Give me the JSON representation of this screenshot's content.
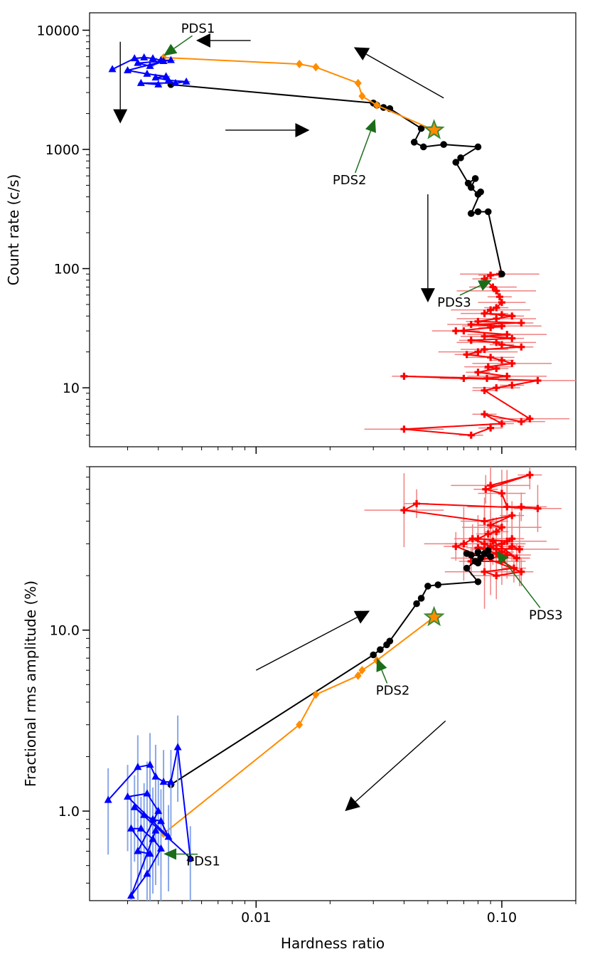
{
  "chart_data": [
    {
      "type": "scatter",
      "panel": "top",
      "title": "",
      "xlabel": "",
      "ylabel": "Count rate (c/s)",
      "xscale": "log",
      "yscale": "log",
      "xlim": [
        0.0021,
        0.2
      ],
      "ylim": [
        3.2,
        14000
      ],
      "yticks": [
        {
          "value": 10,
          "label": "10"
        },
        {
          "value": 100,
          "label": "100"
        },
        {
          "value": 1000,
          "label": "1000"
        },
        {
          "value": 10000,
          "label": "10000"
        }
      ],
      "series": [
        {
          "name": "orange",
          "color": "#ff8c00",
          "marker": "diamond",
          "points": [
            [
              0.0042,
              5900
            ],
            [
              0.015,
              5200
            ],
            [
              0.0175,
              4900
            ],
            [
              0.026,
              3600
            ],
            [
              0.027,
              2800
            ],
            [
              0.031,
              2350
            ],
            [
              0.053,
              1450
            ]
          ]
        },
        {
          "name": "black",
          "color": "#000000",
          "marker": "circle",
          "points": [
            [
              0.0045,
              3500
            ],
            [
              0.03,
              2450
            ],
            [
              0.031,
              2350
            ],
            [
              0.033,
              2250
            ],
            [
              0.035,
              2200
            ],
            [
              0.047,
              1500
            ],
            [
              0.044,
              1150
            ],
            [
              0.048,
              1050
            ],
            [
              0.058,
              1100
            ],
            [
              0.08,
              1050
            ],
            [
              0.068,
              850
            ],
            [
              0.065,
              780
            ],
            [
              0.073,
              520
            ],
            [
              0.078,
              570
            ],
            [
              0.075,
              480
            ],
            [
              0.08,
              420
            ],
            [
              0.082,
              440
            ],
            [
              0.075,
              290
            ],
            [
              0.08,
              300
            ],
            [
              0.088,
              300
            ],
            [
              0.1,
              90
            ]
          ]
        },
        {
          "name": "blue",
          "color": "#0000ff",
          "marker": "triangle",
          "errcolor": "#8aa8e8",
          "points": [
            [
              0.0026,
              4700
            ],
            [
              0.0032,
              5800
            ],
            [
              0.0035,
              5900
            ],
            [
              0.0038,
              5800
            ],
            [
              0.0041,
              5600
            ],
            [
              0.0045,
              5600
            ],
            [
              0.0033,
              5300
            ],
            [
              0.0037,
              5000
            ],
            [
              0.0042,
              5500
            ],
            [
              0.003,
              4600
            ],
            [
              0.0036,
              4300
            ],
            [
              0.0043,
              4100
            ],
            [
              0.0039,
              4000
            ],
            [
              0.0044,
              3800
            ],
            [
              0.0052,
              3700
            ],
            [
              0.0047,
              3600
            ],
            [
              0.0034,
              3600
            ],
            [
              0.004,
              3500
            ]
          ]
        },
        {
          "name": "red",
          "color": "#ff0000",
          "marker": "plus",
          "errcolor": "#f08080",
          "points": [
            [
              0.098,
              90
            ],
            [
              0.09,
              88
            ],
            [
              0.085,
              82
            ],
            [
              0.092,
              70
            ],
            [
              0.095,
              65
            ],
            [
              0.098,
              58
            ],
            [
              0.1,
              52
            ],
            [
              0.095,
              47
            ],
            [
              0.09,
              45
            ],
            [
              0.085,
              42
            ],
            [
              0.1,
              41
            ],
            [
              0.11,
              40
            ],
            [
              0.095,
              38
            ],
            [
              0.08,
              36
            ],
            [
              0.12,
              35
            ],
            [
              0.075,
              34
            ],
            [
              0.1,
              33
            ],
            [
              0.09,
              32
            ],
            [
              0.065,
              30
            ],
            [
              0.07,
              30
            ],
            [
              0.105,
              28
            ],
            [
              0.085,
              27
            ],
            [
              0.11,
              26
            ],
            [
              0.075,
              25
            ],
            [
              0.095,
              24
            ],
            [
              0.1,
              23
            ],
            [
              0.12,
              22
            ],
            [
              0.085,
              21
            ],
            [
              0.08,
              20
            ],
            [
              0.072,
              19
            ],
            [
              0.09,
              18
            ],
            [
              0.1,
              17
            ],
            [
              0.11,
              16
            ],
            [
              0.088,
              15
            ],
            [
              0.095,
              14.5
            ],
            [
              0.08,
              13.5
            ],
            [
              0.105,
              12.5
            ],
            [
              0.087,
              12
            ],
            [
              0.04,
              12.5
            ],
            [
              0.07,
              12
            ],
            [
              0.14,
              11.5
            ],
            [
              0.11,
              10.5
            ],
            [
              0.095,
              10
            ],
            [
              0.085,
              9.5
            ],
            [
              0.13,
              5.5
            ],
            [
              0.12,
              5.2
            ],
            [
              0.085,
              6
            ],
            [
              0.1,
              5
            ],
            [
              0.04,
              4.5
            ],
            [
              0.075,
              4
            ],
            [
              0.09,
              4.6
            ]
          ]
        }
      ],
      "star": {
        "x": 0.053,
        "y": 1450
      },
      "arrows": [
        {
          "from": [
            0.0095,
            8200
          ],
          "to": [
            0.0057,
            8200
          ]
        },
        {
          "from": [
            0.058,
            2700
          ],
          "to": [
            0.025,
            7200
          ]
        },
        {
          "from": [
            0.0028,
            8000
          ],
          "to": [
            0.0028,
            1650
          ]
        },
        {
          "from": [
            0.0075,
            1450
          ],
          "to": [
            0.0165,
            1450
          ]
        },
        {
          "from": [
            0.05,
            420
          ],
          "to": [
            0.05,
            52
          ]
        }
      ],
      "annotations": [
        {
          "text": "PDS1",
          "tip": [
            0.0042,
            6100
          ],
          "text_at": [
            0.0058,
            9500
          ]
        },
        {
          "text": "PDS2",
          "tip": [
            0.0305,
            1800
          ],
          "text_at": [
            0.024,
            510
          ]
        },
        {
          "text": "PDS3",
          "tip": [
            0.091,
            80
          ],
          "text_at": [
            0.064,
            48
          ]
        }
      ]
    },
    {
      "type": "scatter",
      "panel": "bottom",
      "title": "",
      "xlabel": "Hardness ratio",
      "ylabel": "Fractional rms amplitude (%)",
      "xscale": "log",
      "yscale": "log",
      "xlim": [
        0.0021,
        0.2
      ],
      "ylim": [
        0.32,
        80
      ],
      "xticks": [
        {
          "value": 0.01,
          "label": "0.01"
        },
        {
          "value": 0.1,
          "label": "0.10"
        }
      ],
      "yticks": [
        {
          "value": 1.0,
          "label": "1.0"
        },
        {
          "value": 10.0,
          "label": "10.0"
        }
      ],
      "series": [
        {
          "name": "orange",
          "color": "#ff8c00",
          "marker": "diamond",
          "points": [
            [
              0.0042,
              0.75
            ],
            [
              0.015,
              3.0
            ],
            [
              0.0175,
              4.4
            ],
            [
              0.026,
              5.6
            ],
            [
              0.027,
              6.0
            ],
            [
              0.031,
              6.8
            ],
            [
              0.053,
              11.8
            ]
          ]
        },
        {
          "name": "black",
          "color": "#000000",
          "marker": "circle",
          "points": [
            [
              0.0045,
              1.4
            ],
            [
              0.03,
              7.3
            ],
            [
              0.032,
              7.8
            ],
            [
              0.034,
              8.3
            ],
            [
              0.035,
              8.7
            ],
            [
              0.045,
              14
            ],
            [
              0.047,
              15
            ],
            [
              0.05,
              17.5
            ],
            [
              0.055,
              17.8
            ],
            [
              0.08,
              18.5
            ],
            [
              0.072,
              22
            ],
            [
              0.078,
              24
            ],
            [
              0.082,
              25
            ],
            [
              0.08,
              27
            ],
            [
              0.085,
              26.5
            ],
            [
              0.09,
              25.5
            ],
            [
              0.075,
              26
            ],
            [
              0.072,
              26.5
            ],
            [
              0.08,
              23.5
            ],
            [
              0.088,
              27.5
            ]
          ]
        },
        {
          "name": "blue",
          "color": "#0000ff",
          "marker": "triangle",
          "errcolor": "#8aa8e8",
          "points": [
            [
              0.0025,
              1.15
            ],
            [
              0.0033,
              1.75
            ],
            [
              0.0037,
              1.8
            ],
            [
              0.0039,
              1.55
            ],
            [
              0.0042,
              1.45
            ],
            [
              0.0045,
              1.45
            ],
            [
              0.0048,
              2.25
            ],
            [
              0.0054,
              0.55
            ],
            [
              0.0032,
              1.05
            ],
            [
              0.0035,
              0.95
            ],
            [
              0.0038,
              0.9
            ],
            [
              0.0041,
              0.88
            ],
            [
              0.0044,
              0.72
            ],
            [
              0.003,
              1.2
            ],
            [
              0.0036,
              1.25
            ],
            [
              0.004,
              1.0
            ],
            [
              0.0033,
              0.6
            ],
            [
              0.0037,
              0.58
            ],
            [
              0.0031,
              0.8
            ],
            [
              0.0034,
              0.8
            ],
            [
              0.0038,
              0.7
            ],
            [
              0.0041,
              0.62
            ],
            [
              0.0036,
              0.45
            ],
            [
              0.0031,
              0.34
            ],
            [
              0.0039,
              0.78
            ]
          ]
        },
        {
          "name": "red",
          "color": "#ff0000",
          "marker": "plus",
          "errcolor": "#f08080",
          "points": [
            [
              0.09,
              63
            ],
            [
              0.13,
              72
            ],
            [
              0.086,
              60
            ],
            [
              0.1,
              57
            ],
            [
              0.105,
              48
            ],
            [
              0.12,
              48
            ],
            [
              0.14,
              47
            ],
            [
              0.045,
              50
            ],
            [
              0.04,
              46
            ],
            [
              0.085,
              40
            ],
            [
              0.11,
              43
            ],
            [
              0.09,
              38
            ],
            [
              0.1,
              37
            ],
            [
              0.095,
              35
            ],
            [
              0.088,
              34
            ],
            [
              0.08,
              32
            ],
            [
              0.105,
              31
            ],
            [
              0.11,
              32
            ],
            [
              0.1,
              30
            ],
            [
              0.09,
              29
            ],
            [
              0.085,
              30
            ],
            [
              0.095,
              28
            ],
            [
              0.1,
              27
            ],
            [
              0.11,
              29
            ],
            [
              0.118,
              28
            ],
            [
              0.08,
              28.5
            ],
            [
              0.095,
              26.5
            ],
            [
              0.105,
              26
            ],
            [
              0.09,
              25
            ],
            [
              0.075,
              24
            ],
            [
              0.1,
              24
            ],
            [
              0.112,
              22
            ],
            [
              0.085,
              21
            ],
            [
              0.095,
              20
            ],
            [
              0.12,
              21
            ],
            [
              0.065,
              29
            ],
            [
              0.07,
              30
            ],
            [
              0.076,
              32
            ],
            [
              0.115,
              25
            ],
            [
              0.092,
              31
            ]
          ]
        }
      ],
      "star": {
        "x": 0.053,
        "y": 11.8
      },
      "arrows": [
        {
          "from": [
            0.01,
            6.0
          ],
          "to": [
            0.029,
            12.8
          ]
        },
        {
          "from": [
            0.059,
            3.15
          ],
          "to": [
            0.023,
            1.0
          ]
        }
      ],
      "annotations": [
        {
          "text": "PDS1",
          "tip": [
            0.0042,
            0.58
          ],
          "text_at": [
            0.0061,
            0.5
          ]
        },
        {
          "text": "PDS2",
          "tip": [
            0.031,
            7.0
          ],
          "text_at": [
            0.036,
            4.4
          ]
        },
        {
          "text": "PDS3",
          "tip": [
            0.095,
            27.5
          ],
          "text_at": [
            0.151,
            11.5
          ]
        }
      ]
    }
  ]
}
